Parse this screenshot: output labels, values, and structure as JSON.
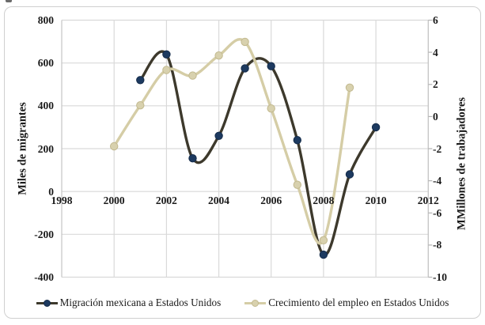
{
  "chart_data": {
    "type": "line",
    "smooth": true,
    "title": "",
    "grid": true,
    "legend_position": "bottom",
    "x_axis": {
      "min": 1998,
      "max": 2012,
      "ticks": [
        1998,
        2000,
        2002,
        2004,
        2006,
        2008,
        2010,
        2012
      ]
    },
    "y_left": {
      "label": "Miles de migrantes",
      "min": -400,
      "max": 800,
      "ticks": [
        800,
        600,
        400,
        200,
        0,
        -200,
        -400
      ]
    },
    "y_right": {
      "label": "MMillones de trabajadores",
      "min": -10,
      "max": 6,
      "ticks": [
        6,
        4,
        2,
        0,
        -2,
        -4,
        -6,
        -8,
        -10
      ]
    },
    "series": [
      {
        "name": "Migración mexicana a Estados Unidos",
        "axis": "left",
        "color": "#3d392c",
        "marker_color": "#1d3a60",
        "marker_stroke": "#152c4a",
        "x": [
          2001,
          2002,
          2003,
          2004,
          2005,
          2006,
          2007,
          2008,
          2009,
          2010
        ],
        "values": [
          520,
          640,
          155,
          260,
          575,
          585,
          240,
          -295,
          80,
          300
        ]
      },
      {
        "name": "Crecimiento del empleo en Estados Unidos",
        "axis": "right",
        "color": "#d5cda6",
        "marker_color": "#d8d1ae",
        "marker_stroke": "#c2b98f",
        "x": [
          2000,
          2001,
          2002,
          2003,
          2004,
          2005,
          2006,
          2007,
          2008,
          2009
        ],
        "values": [
          -1.85,
          0.7,
          2.9,
          2.55,
          3.8,
          4.65,
          0.5,
          -4.25,
          -7.7,
          1.8
        ]
      }
    ],
    "gridline_color": "#d9d9d9",
    "axis_line_color": "#c4c4c4"
  }
}
